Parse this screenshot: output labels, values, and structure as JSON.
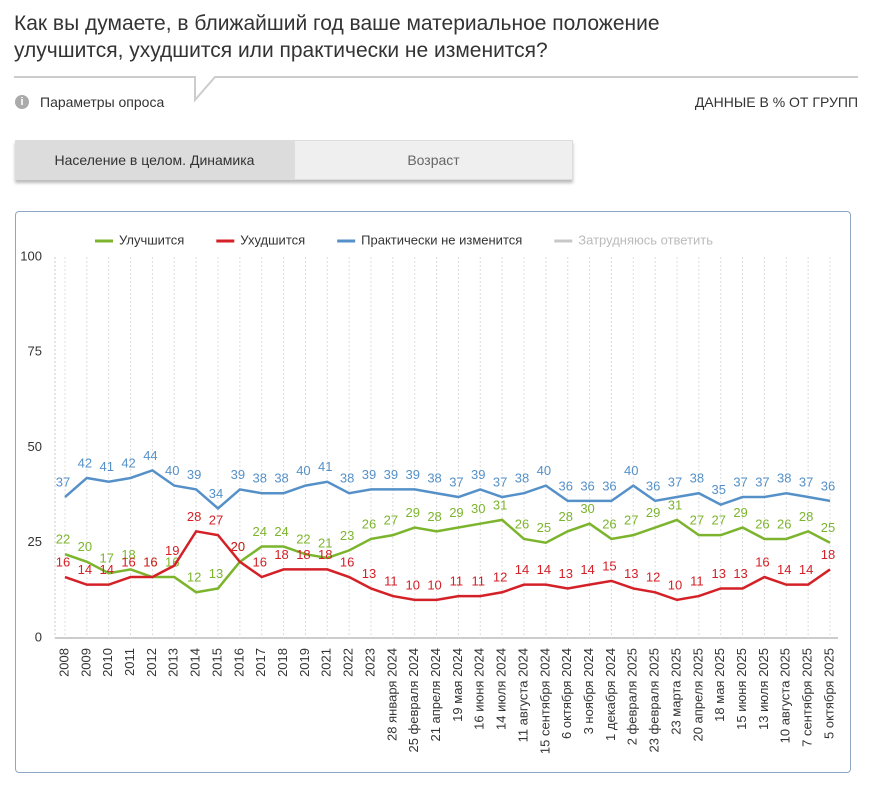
{
  "header": {
    "title_line1": "Как вы думаете, в ближайший год ваше материальное положение",
    "title_line2": "улучшится, ухудшится или практически не изменится?",
    "params": "Параметры опроса",
    "units_note": "ДАННЫЕ В % ОТ ГРУПП"
  },
  "tabs": [
    "Население в целом. Динамика",
    "Возраст"
  ],
  "chart_data": {
    "type": "line",
    "categories": [
      "2008",
      "2009",
      "2010",
      "2011",
      "2012",
      "2013",
      "2014",
      "2015",
      "2016",
      "2017",
      "2018",
      "2019",
      "2021",
      "2022",
      "2023",
      "28 января 2024",
      "25 февраля 2024",
      "21 апреля 2024",
      "19 мая 2024",
      "16 июня 2024",
      "14 июля 2024",
      "11 августа 2024",
      "15 сентября 2024",
      "6 октября 2024",
      "3 ноября 2024",
      "1 декабря 2024",
      "2 февраля 2025",
      "23 февраля 2025",
      "23 марта 2025",
      "20 апреля 2025",
      "18 мая 2025",
      "15 июня 2025",
      "13 июля 2025",
      "10 августа 2025",
      "7 сентября 2025",
      "5 октября 2025"
    ],
    "series": [
      {
        "name": "Улучшится",
        "color": "#7cb52d",
        "values": [
          22,
          20,
          17,
          18,
          16,
          16,
          12,
          13,
          20,
          24,
          24,
          22,
          21,
          23,
          26,
          27,
          29,
          28,
          29,
          30,
          31,
          26,
          25,
          28,
          30,
          26,
          27,
          29,
          31,
          27,
          27,
          29,
          26,
          26,
          28,
          25
        ]
      },
      {
        "name": "Ухудшится",
        "color": "#d42027",
        "values": [
          16,
          14,
          14,
          16,
          16,
          19,
          28,
          27,
          20,
          16,
          18,
          18,
          18,
          16,
          13,
          11,
          10,
          10,
          11,
          11,
          12,
          14,
          14,
          13,
          14,
          15,
          13,
          12,
          10,
          11,
          13,
          13,
          16,
          14,
          14,
          18
        ]
      },
      {
        "name": "Практически не изменится",
        "color": "#5591c8",
        "values": [
          37,
          42,
          41,
          42,
          44,
          40,
          39,
          34,
          39,
          38,
          38,
          40,
          41,
          38,
          39,
          39,
          39,
          38,
          37,
          39,
          37,
          38,
          40,
          36,
          36,
          36,
          40,
          36,
          37,
          38,
          35,
          37,
          37,
          38,
          37,
          36
        ]
      },
      {
        "name": "Затрудняюсь ответить",
        "color": "#c8c8c8",
        "hidden": true
      }
    ],
    "ylim": [
      0,
      100
    ],
    "yticks": [
      0,
      25,
      50,
      75,
      100
    ],
    "grid": true,
    "data_labels": true
  }
}
